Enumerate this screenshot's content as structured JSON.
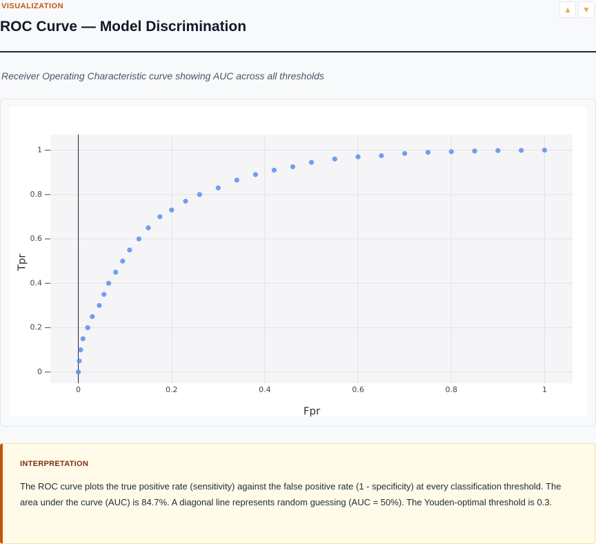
{
  "header": {
    "kicker": "VISUALIZATION",
    "title": "ROC Curve — Model Discrimination",
    "subtitle": "Receiver Operating Characteristic curve showing AUC across all thresholds"
  },
  "chart_data": {
    "type": "scatter",
    "x": [
      0,
      0.002,
      0.005,
      0.01,
      0.02,
      0.03,
      0.045,
      0.055,
      0.065,
      0.08,
      0.095,
      0.11,
      0.13,
      0.15,
      0.175,
      0.2,
      0.23,
      0.26,
      0.3,
      0.34,
      0.38,
      0.42,
      0.46,
      0.5,
      0.55,
      0.6,
      0.65,
      0.7,
      0.75,
      0.8,
      0.85,
      0.9,
      0.95,
      1
    ],
    "values": [
      0,
      0.05,
      0.1,
      0.15,
      0.2,
      0.25,
      0.3,
      0.35,
      0.4,
      0.45,
      0.5,
      0.55,
      0.6,
      0.65,
      0.7,
      0.73,
      0.77,
      0.8,
      0.83,
      0.865,
      0.89,
      0.91,
      0.925,
      0.945,
      0.96,
      0.97,
      0.975,
      0.985,
      0.99,
      0.993,
      0.996,
      0.998,
      0.999,
      1
    ],
    "color": "#5b8def",
    "xlabel": "Fpr",
    "ylabel": "Tpr",
    "xlim": [
      -0.06,
      1.06
    ],
    "ylim": [
      -0.05,
      1.07
    ],
    "xticks": [
      0,
      0.2,
      0.4,
      0.6,
      0.8,
      1
    ],
    "yticks": [
      0,
      0.2,
      0.4,
      0.6,
      0.8,
      1
    ],
    "grid": true
  },
  "interpretation": {
    "label": "INTERPRETATION",
    "text": "The ROC curve plots the true positive rate (sensitivity) against the false positive rate (1 - specificity) at every classification threshold. The area under the curve (AUC) is 84.7%. A diagonal line represents random guessing (AUC = 50%). The Youden-optimal threshold is 0.3."
  }
}
